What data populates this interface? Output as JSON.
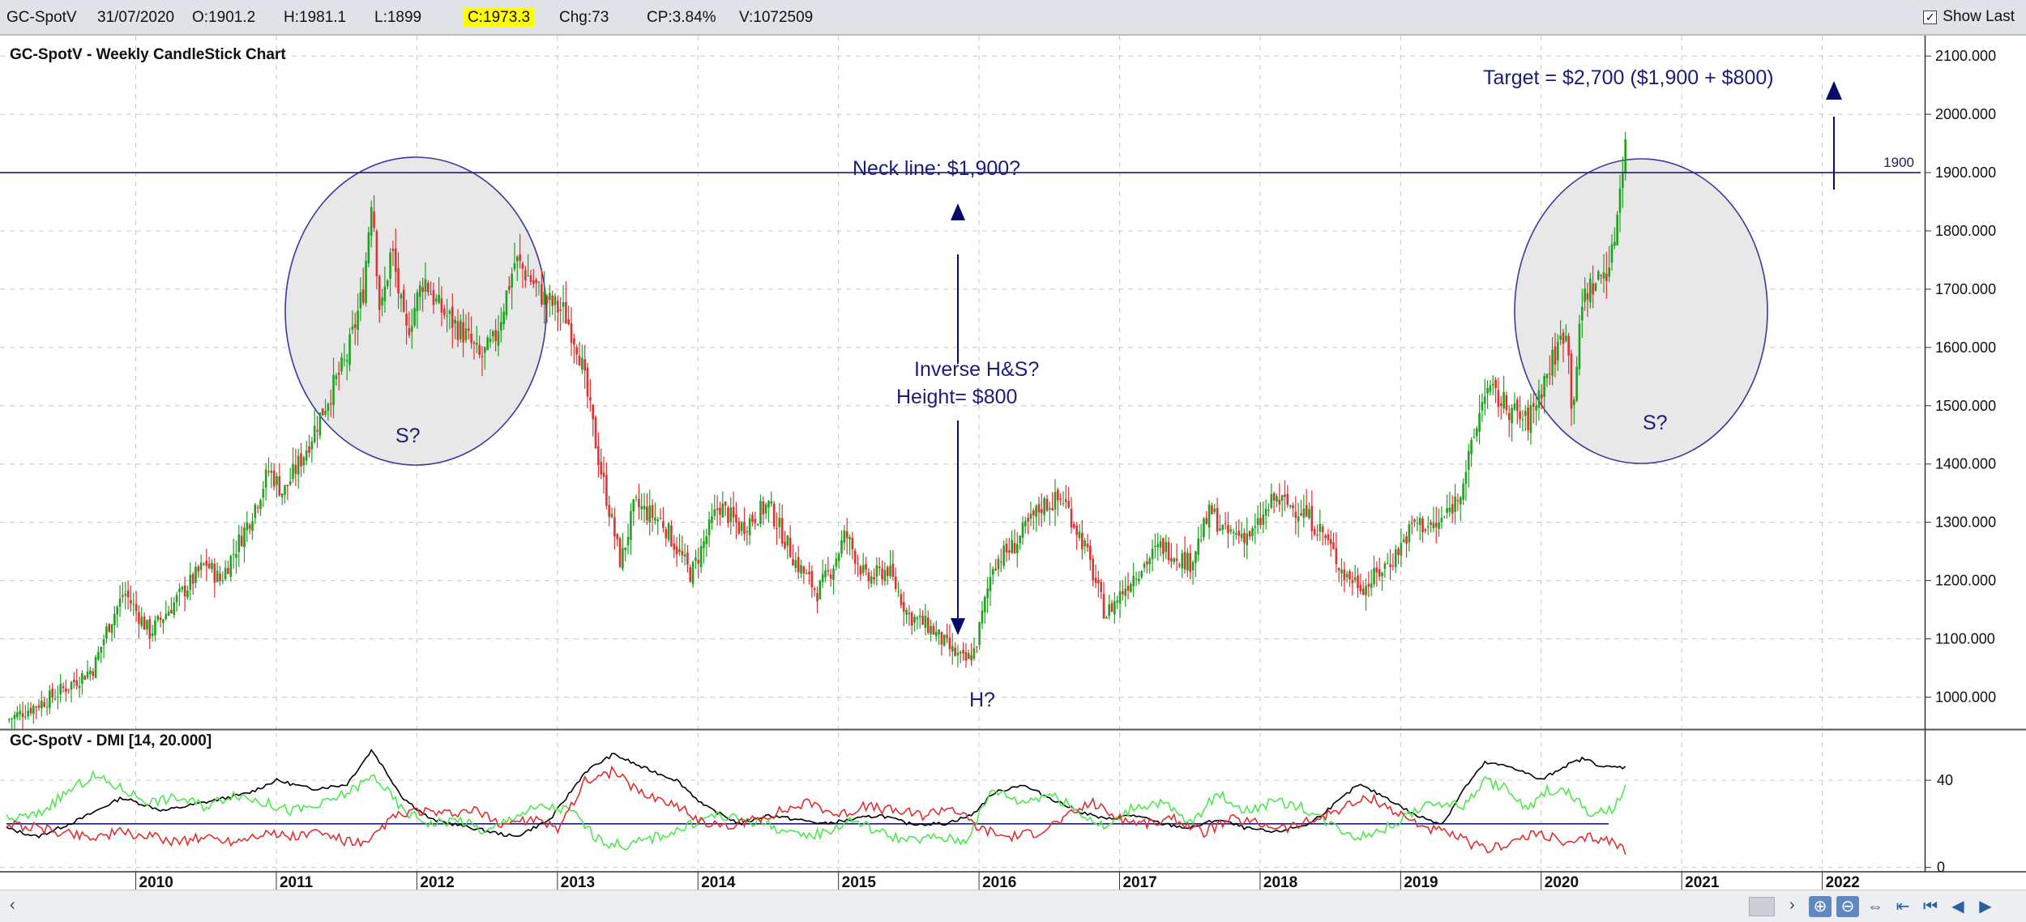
{
  "quote_bar": {
    "symbol": "GC-SpotV",
    "date": "31/07/2020",
    "open": "O:1901.2",
    "high": "H:1981.1",
    "low": "L:1899",
    "close": "C:1973.3",
    "change": "Chg:73",
    "change_pct": "CP:3.84%",
    "volume": "V:1072509",
    "show_last_label": "Show Last",
    "show_last_checked": true
  },
  "annotations": {
    "target": "Target = $2,700 ($1,900 + $800)",
    "neckline": "Neck line: $1,900?",
    "inverse_hs": "Inverse H&S?",
    "height": "Height= $800",
    "left_shoulder": "S?",
    "head": "H?",
    "right_shoulder": "S?",
    "neckline_tag": "1900"
  },
  "chart_data": [
    {
      "type": "candlestick",
      "title": "GC-SpotV - Weekly CandleStick Chart",
      "y_ticks": [
        "2100.000",
        "2000.000",
        "1900.000",
        "1800.000",
        "1700.000",
        "1600.000",
        "1500.000",
        "1400.000",
        "1300.000",
        "1200.000",
        "1100.000",
        "1000.000"
      ],
      "ylim": [
        945,
        2135
      ],
      "x_ticks": [
        "2010",
        "2011",
        "2012",
        "2013",
        "2014",
        "2015",
        "2016",
        "2017",
        "2018",
        "2019",
        "2020",
        "2021",
        "2022"
      ],
      "xlim": [
        2009.08,
        2022.7
      ],
      "grid": true,
      "neckline": 1900,
      "colors": {
        "up": "#1fa21f",
        "down": "#e23030",
        "annotation": "#1c1c7a"
      },
      "close_path": [
        [
          2009.08,
          960
        ],
        [
          2009.4,
          1000
        ],
        [
          2009.7,
          1050
        ],
        [
          2009.8,
          1120
        ],
        [
          2009.92,
          1180
        ],
        [
          2010.1,
          1110
        ],
        [
          2010.3,
          1170
        ],
        [
          2010.5,
          1230
        ],
        [
          2010.6,
          1200
        ],
        [
          2010.8,
          1300
        ],
        [
          2010.95,
          1390
        ],
        [
          2011.05,
          1350
        ],
        [
          2011.2,
          1420
        ],
        [
          2011.38,
          1520
        ],
        [
          2011.5,
          1580
        ],
        [
          2011.62,
          1700
        ],
        [
          2011.68,
          1870
        ],
        [
          2011.74,
          1650
        ],
        [
          2011.82,
          1770
        ],
        [
          2011.92,
          1620
        ],
        [
          2012.05,
          1720
        ],
        [
          2012.15,
          1670
        ],
        [
          2012.35,
          1620
        ],
        [
          2012.45,
          1580
        ],
        [
          2012.55,
          1610
        ],
        [
          2012.7,
          1750
        ],
        [
          2012.8,
          1720
        ],
        [
          2012.92,
          1680
        ],
        [
          2013.05,
          1660
        ],
        [
          2013.15,
          1600
        ],
        [
          2013.3,
          1400
        ],
        [
          2013.45,
          1230
        ],
        [
          2013.55,
          1330
        ],
        [
          2013.75,
          1300
        ],
        [
          2013.95,
          1210
        ],
        [
          2014.15,
          1330
        ],
        [
          2014.3,
          1290
        ],
        [
          2014.5,
          1330
        ],
        [
          2014.7,
          1230
        ],
        [
          2014.85,
          1180
        ],
        [
          2014.95,
          1220
        ],
        [
          2015.05,
          1280
        ],
        [
          2015.2,
          1200
        ],
        [
          2015.35,
          1220
        ],
        [
          2015.5,
          1140
        ],
        [
          2015.65,
          1120
        ],
        [
          2015.8,
          1080
        ],
        [
          2015.9,
          1060
        ],
        [
          2015.97,
          1080
        ],
        [
          2016.1,
          1230
        ],
        [
          2016.25,
          1260
        ],
        [
          2016.45,
          1330
        ],
        [
          2016.6,
          1340
        ],
        [
          2016.75,
          1260
        ],
        [
          2016.9,
          1140
        ],
        [
          2017.1,
          1210
        ],
        [
          2017.3,
          1260
        ],
        [
          2017.5,
          1230
        ],
        [
          2017.65,
          1320
        ],
        [
          2017.75,
          1280
        ],
        [
          2017.95,
          1280
        ],
        [
          2018.1,
          1340
        ],
        [
          2018.3,
          1320
        ],
        [
          2018.45,
          1280
        ],
        [
          2018.6,
          1210
        ],
        [
          2018.75,
          1190
        ],
        [
          2018.95,
          1240
        ],
        [
          2019.1,
          1300
        ],
        [
          2019.25,
          1290
        ],
        [
          2019.4,
          1340
        ],
        [
          2019.5,
          1420
        ],
        [
          2019.6,
          1530
        ],
        [
          2019.75,
          1500
        ],
        [
          2019.9,
          1470
        ],
        [
          2020.0,
          1530
        ],
        [
          2020.1,
          1590
        ],
        [
          2020.18,
          1640
        ],
        [
          2020.22,
          1490
        ],
        [
          2020.3,
          1690
        ],
        [
          2020.42,
          1720
        ],
        [
          2020.5,
          1750
        ],
        [
          2020.55,
          1850
        ],
        [
          2020.6,
          1970
        ]
      ]
    },
    {
      "type": "line",
      "title": "GC-SpotV - DMI [14, 20.000]",
      "y_ticks": [
        "40",
        "0"
      ],
      "ylim": [
        -2,
        56
      ],
      "x_ticks": [
        "2010",
        "2011",
        "2012",
        "2013",
        "2014",
        "2015",
        "2016",
        "2017",
        "2018",
        "2019",
        "2020",
        "2021",
        "2022"
      ],
      "xlim": [
        2009.08,
        2022.7
      ],
      "reference_line": 20,
      "series": [
        {
          "color": "#000000",
          "points": [
            [
              2009.08,
              18
            ],
            [
              2009.3,
              14
            ],
            [
              2009.6,
              22
            ],
            [
              2009.9,
              32
            ],
            [
              2010.2,
              26
            ],
            [
              2010.5,
              30
            ],
            [
              2010.8,
              34
            ],
            [
              2011.0,
              40
            ],
            [
              2011.25,
              36
            ],
            [
              2011.5,
              38
            ],
            [
              2011.68,
              54
            ],
            [
              2011.9,
              32
            ],
            [
              2012.1,
              22
            ],
            [
              2012.4,
              18
            ],
            [
              2012.7,
              14
            ],
            [
              2012.95,
              22
            ],
            [
              2013.2,
              44
            ],
            [
              2013.4,
              52
            ],
            [
              2013.6,
              46
            ],
            [
              2013.85,
              40
            ],
            [
              2014.05,
              28
            ],
            [
              2014.3,
              20
            ],
            [
              2014.5,
              24
            ],
            [
              2014.7,
              22
            ],
            [
              2014.9,
              20
            ],
            [
              2015.1,
              22
            ],
            [
              2015.3,
              24
            ],
            [
              2015.5,
              20
            ],
            [
              2015.75,
              20
            ],
            [
              2015.95,
              24
            ],
            [
              2016.1,
              34
            ],
            [
              2016.3,
              38
            ],
            [
              2016.5,
              32
            ],
            [
              2016.7,
              26
            ],
            [
              2016.9,
              22
            ],
            [
              2017.1,
              24
            ],
            [
              2017.3,
              20
            ],
            [
              2017.5,
              18
            ],
            [
              2017.7,
              22
            ],
            [
              2017.9,
              18
            ],
            [
              2018.1,
              16
            ],
            [
              2018.35,
              20
            ],
            [
              2018.55,
              30
            ],
            [
              2018.7,
              38
            ],
            [
              2018.9,
              32
            ],
            [
              2019.1,
              24
            ],
            [
              2019.3,
              20
            ],
            [
              2019.45,
              36
            ],
            [
              2019.6,
              48
            ],
            [
              2019.8,
              46
            ],
            [
              2020.0,
              40
            ],
            [
              2020.15,
              46
            ],
            [
              2020.3,
              50
            ],
            [
              2020.45,
              46
            ],
            [
              2020.6,
              46
            ]
          ]
        },
        {
          "color": "#4fe84f",
          "points": [
            [
              2009.08,
              22
            ],
            [
              2009.3,
              24
            ],
            [
              2009.5,
              34
            ],
            [
              2009.7,
              42
            ],
            [
              2009.9,
              36
            ],
            [
              2010.1,
              30
            ],
            [
              2010.3,
              32
            ],
            [
              2010.5,
              28
            ],
            [
              2010.7,
              34
            ],
            [
              2010.9,
              30
            ],
            [
              2011.1,
              26
            ],
            [
              2011.3,
              28
            ],
            [
              2011.5,
              34
            ],
            [
              2011.7,
              42
            ],
            [
              2011.9,
              26
            ],
            [
              2012.1,
              20
            ],
            [
              2012.3,
              22
            ],
            [
              2012.5,
              16
            ],
            [
              2012.7,
              24
            ],
            [
              2012.9,
              28
            ],
            [
              2013.1,
              26
            ],
            [
              2013.3,
              12
            ],
            [
              2013.5,
              10
            ],
            [
              2013.7,
              14
            ],
            [
              2013.9,
              18
            ],
            [
              2014.1,
              24
            ],
            [
              2014.3,
              22
            ],
            [
              2014.5,
              20
            ],
            [
              2014.7,
              14
            ],
            [
              2014.9,
              16
            ],
            [
              2015.1,
              22
            ],
            [
              2015.3,
              16
            ],
            [
              2015.5,
              12
            ],
            [
              2015.7,
              14
            ],
            [
              2015.9,
              12
            ],
            [
              2016.1,
              36
            ],
            [
              2016.3,
              30
            ],
            [
              2016.5,
              34
            ],
            [
              2016.7,
              26
            ],
            [
              2016.9,
              18
            ],
            [
              2017.1,
              28
            ],
            [
              2017.3,
              30
            ],
            [
              2017.5,
              20
            ],
            [
              2017.7,
              34
            ],
            [
              2017.9,
              26
            ],
            [
              2018.1,
              30
            ],
            [
              2018.3,
              28
            ],
            [
              2018.5,
              20
            ],
            [
              2018.7,
              14
            ],
            [
              2018.9,
              18
            ],
            [
              2019.1,
              26
            ],
            [
              2019.3,
              30
            ],
            [
              2019.45,
              28
            ],
            [
              2019.6,
              40
            ],
            [
              2019.75,
              36
            ],
            [
              2019.9,
              26
            ],
            [
              2020.05,
              36
            ],
            [
              2020.2,
              34
            ],
            [
              2020.35,
              24
            ],
            [
              2020.5,
              26
            ],
            [
              2020.6,
              36
            ]
          ]
        },
        {
          "color": "#e23030",
          "points": [
            [
              2009.08,
              20
            ],
            [
              2009.3,
              18
            ],
            [
              2009.5,
              16
            ],
            [
              2009.7,
              14
            ],
            [
              2009.9,
              16
            ],
            [
              2010.1,
              14
            ],
            [
              2010.3,
              12
            ],
            [
              2010.5,
              14
            ],
            [
              2010.7,
              12
            ],
            [
              2010.9,
              16
            ],
            [
              2011.1,
              14
            ],
            [
              2011.3,
              16
            ],
            [
              2011.5,
              12
            ],
            [
              2011.65,
              10
            ],
            [
              2011.8,
              22
            ],
            [
              2012.0,
              26
            ],
            [
              2012.2,
              24
            ],
            [
              2012.4,
              26
            ],
            [
              2012.6,
              20
            ],
            [
              2012.8,
              22
            ],
            [
              2013.0,
              18
            ],
            [
              2013.2,
              40
            ],
            [
              2013.4,
              44
            ],
            [
              2013.6,
              34
            ],
            [
              2013.8,
              30
            ],
            [
              2014.0,
              22
            ],
            [
              2014.2,
              18
            ],
            [
              2014.4,
              22
            ],
            [
              2014.6,
              26
            ],
            [
              2014.8,
              30
            ],
            [
              2015.0,
              24
            ],
            [
              2015.2,
              28
            ],
            [
              2015.4,
              26
            ],
            [
              2015.6,
              24
            ],
            [
              2015.8,
              28
            ],
            [
              2016.0,
              18
            ],
            [
              2016.2,
              14
            ],
            [
              2016.4,
              16
            ],
            [
              2016.6,
              22
            ],
            [
              2016.8,
              30
            ],
            [
              2017.0,
              22
            ],
            [
              2017.2,
              20
            ],
            [
              2017.4,
              22
            ],
            [
              2017.6,
              16
            ],
            [
              2017.8,
              22
            ],
            [
              2018.0,
              20
            ],
            [
              2018.2,
              18
            ],
            [
              2018.4,
              22
            ],
            [
              2018.6,
              28
            ],
            [
              2018.8,
              32
            ],
            [
              2019.0,
              24
            ],
            [
              2019.2,
              18
            ],
            [
              2019.4,
              14
            ],
            [
              2019.6,
              8
            ],
            [
              2019.8,
              12
            ],
            [
              2020.0,
              16
            ],
            [
              2020.2,
              10
            ],
            [
              2020.35,
              14
            ],
            [
              2020.5,
              12
            ],
            [
              2020.6,
              8
            ]
          ]
        }
      ]
    }
  ]
}
